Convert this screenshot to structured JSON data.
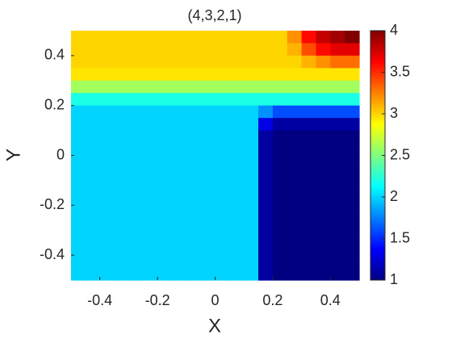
{
  "chart_data": {
    "type": "heatmap",
    "title": "(4,3,2,1)",
    "xlabel": "X",
    "ylabel": "Y",
    "colormap": "jet",
    "clim": [
      1,
      4
    ],
    "cticks": [
      1,
      1.5,
      2,
      2.5,
      3,
      3.5,
      4
    ],
    "xlim": [
      -0.5,
      0.5
    ],
    "ylim": [
      -0.5,
      0.5
    ],
    "xticks": [
      -0.4,
      -0.2,
      0,
      0.2,
      0.4
    ],
    "yticks": [
      -0.4,
      -0.2,
      0,
      0.2,
      0.4
    ],
    "x": [
      -0.475,
      -0.425,
      -0.375,
      -0.325,
      -0.275,
      -0.225,
      -0.175,
      -0.125,
      -0.075,
      -0.025,
      0.025,
      0.075,
      0.125,
      0.175,
      0.225,
      0.275,
      0.325,
      0.375,
      0.425,
      0.475
    ],
    "y": [
      0.475,
      0.425,
      0.375,
      0.325,
      0.275,
      0.225,
      0.175,
      0.125,
      0.075,
      0.025,
      -0.025,
      -0.075,
      -0.125,
      -0.175,
      -0.225,
      -0.275,
      -0.325,
      -0.375,
      -0.425,
      -0.475
    ],
    "z": [
      [
        3,
        3,
        3,
        3,
        3,
        3,
        3,
        3,
        3,
        3,
        3,
        3,
        3,
        3,
        3,
        3.2,
        3.6,
        3.8,
        3.9,
        4
      ],
      [
        3,
        3,
        3,
        3,
        3,
        3,
        3,
        3,
        3,
        3,
        3,
        3,
        3,
        3,
        3,
        3.1,
        3.4,
        3.6,
        3.7,
        3.7
      ],
      [
        3,
        3,
        3,
        3,
        3,
        3,
        3,
        3,
        3,
        3,
        3,
        3,
        3,
        3,
        3,
        3,
        3.1,
        3.2,
        3.3,
        3.3
      ],
      [
        2.95,
        2.95,
        2.95,
        2.95,
        2.95,
        2.95,
        2.95,
        2.95,
        2.95,
        2.95,
        2.95,
        2.95,
        2.95,
        2.95,
        2.95,
        2.95,
        2.95,
        2.95,
        2.95,
        2.95
      ],
      [
        2.6,
        2.6,
        2.6,
        2.6,
        2.6,
        2.6,
        2.6,
        2.6,
        2.6,
        2.6,
        2.6,
        2.6,
        2.6,
        2.6,
        2.6,
        2.6,
        2.6,
        2.6,
        2.6,
        2.6
      ],
      [
        2.2,
        2.2,
        2.2,
        2.2,
        2.2,
        2.2,
        2.2,
        2.2,
        2.2,
        2.2,
        2.2,
        2.2,
        2.2,
        2.2,
        2.2,
        2.2,
        2.2,
        2.2,
        2.2,
        2.2
      ],
      [
        2,
        2,
        2,
        2,
        2,
        2,
        2,
        2,
        2,
        2,
        2,
        2,
        2,
        1.8,
        1.6,
        1.6,
        1.6,
        1.6,
        1.6,
        1.6
      ],
      [
        2,
        2,
        2,
        2,
        2,
        2,
        2,
        2,
        2,
        2,
        2,
        2,
        2,
        1.3,
        1.1,
        1.1,
        1.1,
        1.1,
        1.1,
        1.1
      ],
      [
        2,
        2,
        2,
        2,
        2,
        2,
        2,
        2,
        2,
        2,
        2,
        2,
        2,
        1.1,
        1,
        1,
        1,
        1,
        1,
        1
      ],
      [
        2,
        2,
        2,
        2,
        2,
        2,
        2,
        2,
        2,
        2,
        2,
        2,
        2,
        1.1,
        1,
        1,
        1,
        1,
        1,
        1
      ],
      [
        2,
        2,
        2,
        2,
        2,
        2,
        2,
        2,
        2,
        2,
        2,
        2,
        2,
        1.1,
        1,
        1,
        1,
        1,
        1,
        1
      ],
      [
        2,
        2,
        2,
        2,
        2,
        2,
        2,
        2,
        2,
        2,
        2,
        2,
        2,
        1.1,
        1,
        1,
        1,
        1,
        1,
        1
      ],
      [
        2,
        2,
        2,
        2,
        2,
        2,
        2,
        2,
        2,
        2,
        2,
        2,
        2,
        1.1,
        1,
        1,
        1,
        1,
        1,
        1
      ],
      [
        2,
        2,
        2,
        2,
        2,
        2,
        2,
        2,
        2,
        2,
        2,
        2,
        2,
        1.1,
        1,
        1,
        1,
        1,
        1,
        1
      ],
      [
        2,
        2,
        2,
        2,
        2,
        2,
        2,
        2,
        2,
        2,
        2,
        2,
        2,
        1.1,
        1,
        1,
        1,
        1,
        1,
        1
      ],
      [
        2,
        2,
        2,
        2,
        2,
        2,
        2,
        2,
        2,
        2,
        2,
        2,
        2,
        1.1,
        1,
        1,
        1,
        1,
        1,
        1
      ],
      [
        2,
        2,
        2,
        2,
        2,
        2,
        2,
        2,
        2,
        2,
        2,
        2,
        2,
        1.1,
        1,
        1,
        1,
        1,
        1,
        1
      ],
      [
        2,
        2,
        2,
        2,
        2,
        2,
        2,
        2,
        2,
        2,
        2,
        2,
        2,
        1.1,
        1,
        1,
        1,
        1,
        1,
        1
      ],
      [
        2,
        2,
        2,
        2,
        2,
        2,
        2,
        2,
        2,
        2,
        2,
        2,
        2,
        1.1,
        1,
        1,
        1,
        1,
        1,
        1
      ],
      [
        2,
        2,
        2,
        2,
        2,
        2,
        2,
        2,
        2,
        2,
        2,
        2,
        2,
        1.1,
        1,
        1,
        1,
        1,
        1,
        1
      ]
    ]
  }
}
